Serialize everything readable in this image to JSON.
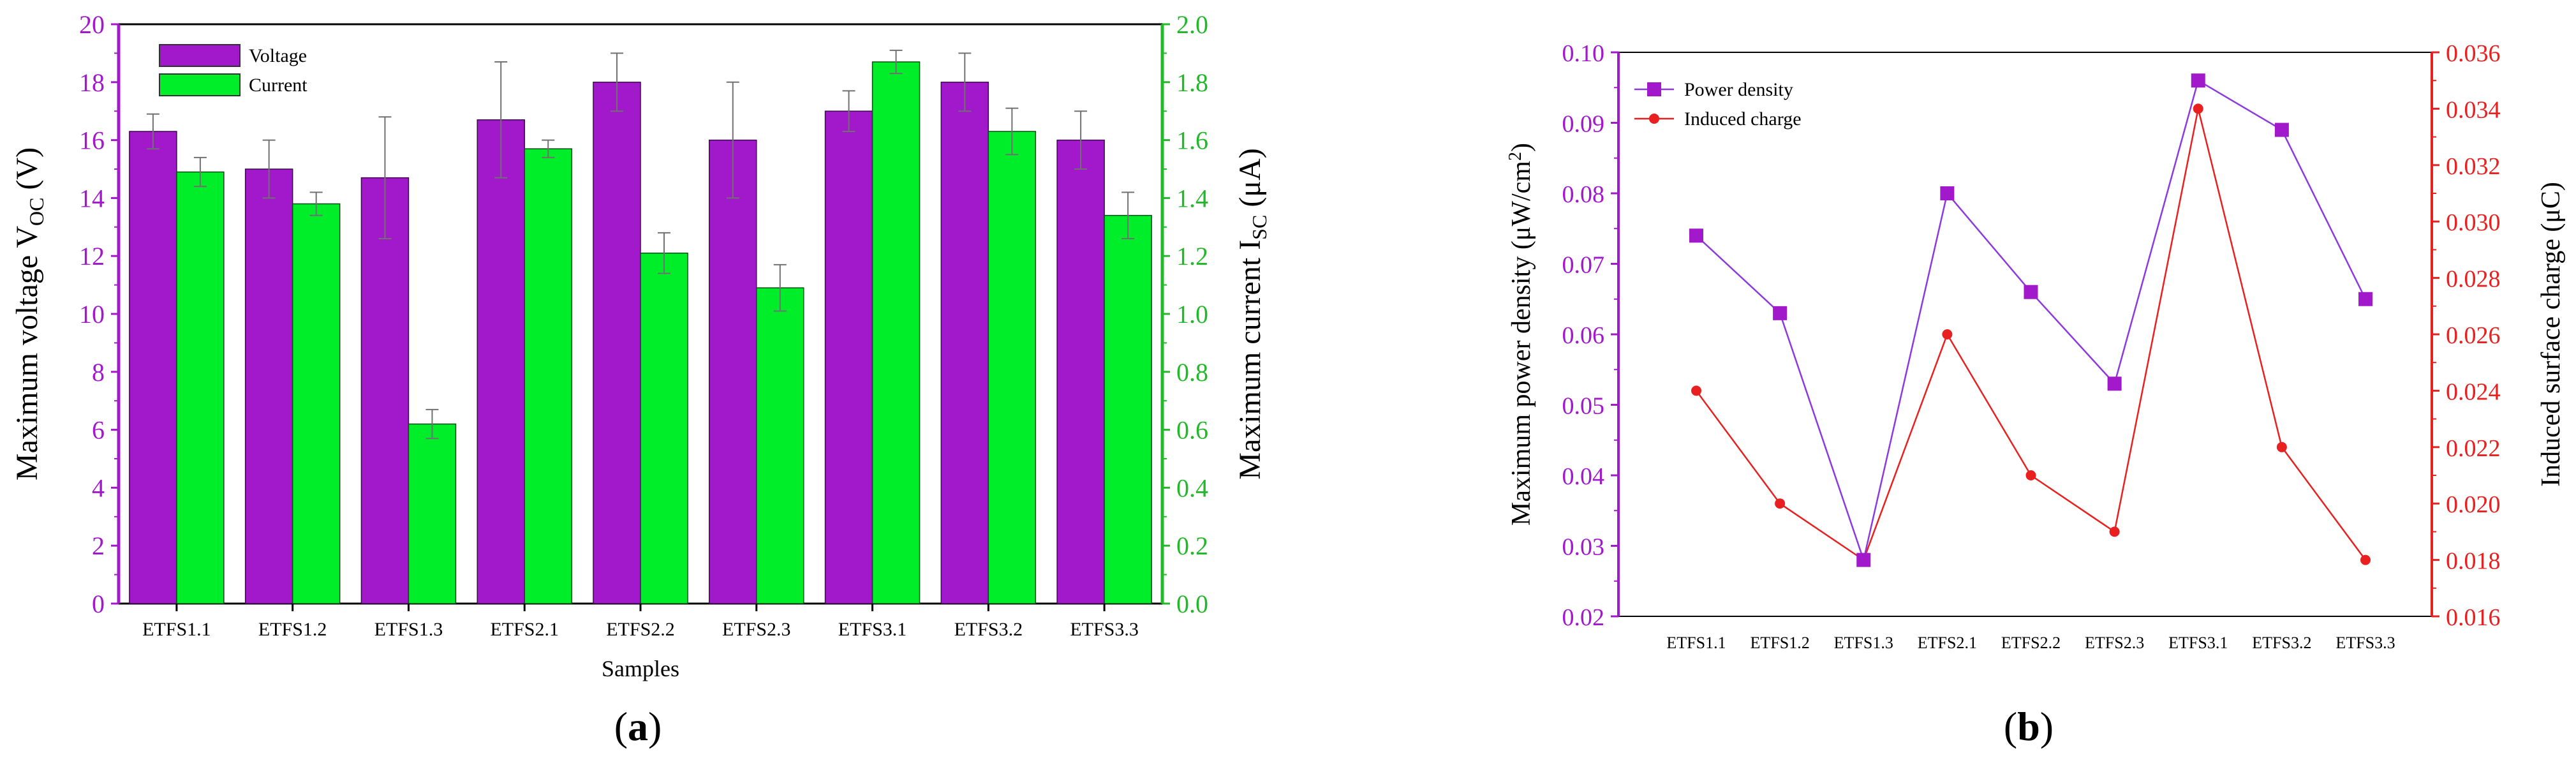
{
  "colors": {
    "purple": "#a219cc",
    "green": "#00ee2a",
    "power_line": "#8c39e0",
    "red": "#e82020",
    "axis_black": "#000000",
    "left_axis_a": "#a219cc",
    "right_axis_a": "#22b82a",
    "left_axis_b": "#a219cc",
    "right_axis_b": "#e82020",
    "error_bar": "#707070"
  },
  "chart_data": [
    {
      "panel_label": "(a)",
      "type": "bar",
      "categories": [
        "ETFS1.1",
        "ETFS1.2",
        "ETFS1.3",
        "ETFS2.1",
        "ETFS2.2",
        "ETFS2.3",
        "ETFS3.1",
        "ETFS3.2",
        "ETFS3.3"
      ],
      "xlabel": "Samples",
      "ylabel_left": "Maximum voltage V",
      "ylabel_left_sub": "OC",
      "ylabel_left_unit": " (V)",
      "ylabel_right": "Maximum current I",
      "ylabel_right_sub": "SC",
      "ylabel_right_unit": " (μA)",
      "ylim_left": [
        0,
        20
      ],
      "ylim_right": [
        0,
        2.0
      ],
      "yticks_left": [
        "0",
        "2",
        "4",
        "6",
        "8",
        "10",
        "12",
        "14",
        "16",
        "18",
        "20"
      ],
      "yticks_right": [
        "0.0",
        "0.2",
        "0.4",
        "0.6",
        "0.8",
        "1.0",
        "1.2",
        "1.4",
        "1.6",
        "1.8",
        "2.0"
      ],
      "legend_position": "top-left",
      "grid": false,
      "series": [
        {
          "name": "Voltage",
          "axis": "left",
          "color": "#a219cc",
          "values": [
            16.3,
            15.0,
            14.7,
            16.7,
            18.0,
            16.0,
            17.0,
            18.0,
            16.0
          ],
          "errors": [
            0.6,
            1.0,
            2.1,
            2.0,
            1.0,
            2.0,
            0.7,
            1.0,
            1.0
          ]
        },
        {
          "name": "Current",
          "axis": "right",
          "color": "#00ee2a",
          "values": [
            1.49,
            1.38,
            0.62,
            1.57,
            1.21,
            1.09,
            1.87,
            1.63,
            1.34
          ],
          "errors": [
            0.05,
            0.04,
            0.05,
            0.03,
            0.07,
            0.08,
            0.04,
            0.08,
            0.08
          ]
        }
      ]
    },
    {
      "panel_label": "(b)",
      "type": "line",
      "categories": [
        "ETFS1.1",
        "ETFS1.2",
        "ETFS1.3",
        "ETFS2.1",
        "ETFS2.2",
        "ETFS2.3",
        "ETFS3.1",
        "ETFS3.2",
        "ETFS3.3"
      ],
      "xlabel": "",
      "ylabel_left": "Maximum power density (μW/cm",
      "ylabel_left_sup": "2",
      "ylabel_left_unit": ")",
      "ylabel_right": "Induced surface charge (μC)",
      "ylim_left": [
        0.02,
        0.1
      ],
      "ylim_right": [
        0.016,
        0.036
      ],
      "yticks_left": [
        "0.02",
        "0.03",
        "0.04",
        "0.05",
        "0.06",
        "0.07",
        "0.08",
        "0.09",
        "0.10"
      ],
      "yticks_right": [
        "0.016",
        "0.018",
        "0.020",
        "0.022",
        "0.024",
        "0.026",
        "0.028",
        "0.030",
        "0.032",
        "0.034",
        "0.036"
      ],
      "legend_position": "top-left",
      "grid": false,
      "series": [
        {
          "name": "Power density",
          "axis": "left",
          "marker": "square",
          "color": "#a219cc",
          "values": [
            0.074,
            0.063,
            0.028,
            0.08,
            0.066,
            0.053,
            0.096,
            0.089,
            0.065
          ]
        },
        {
          "name": "Induced charge",
          "axis": "right",
          "marker": "circle",
          "color": "#e82020",
          "values": [
            0.024,
            0.02,
            0.018,
            0.026,
            0.021,
            0.019,
            0.034,
            0.022,
            0.018
          ]
        }
      ]
    }
  ]
}
